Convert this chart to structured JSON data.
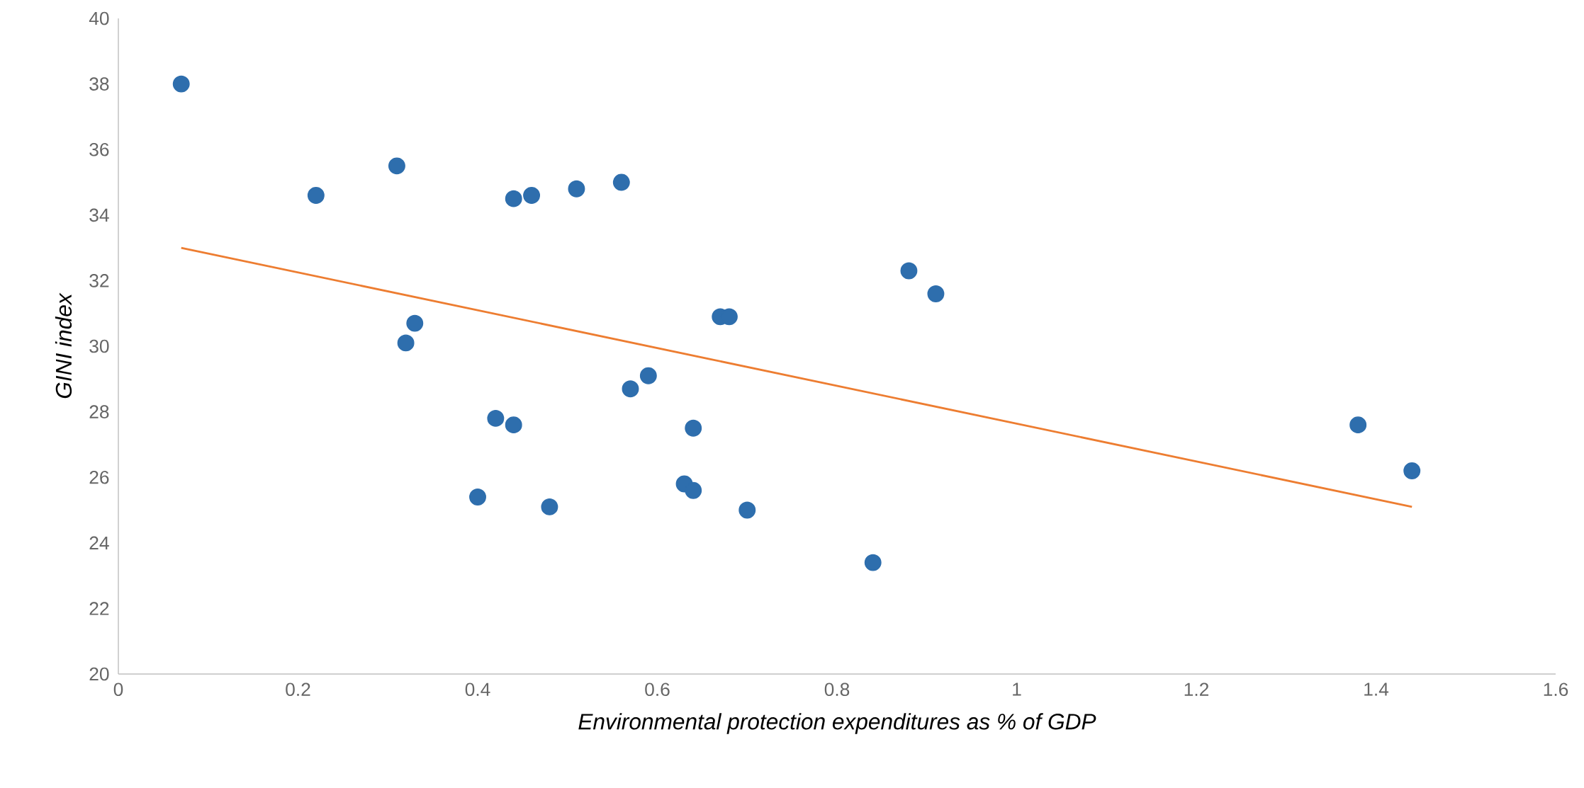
{
  "chart_data": {
    "type": "scatter",
    "xlabel": "Environmental protection expenditures as % of GDP",
    "ylabel": "GINI index",
    "xlim": [
      0,
      1.6
    ],
    "ylim": [
      20,
      40
    ],
    "xticks": [
      0,
      0.2,
      0.4,
      0.6,
      0.8,
      1,
      1.2,
      1.4,
      1.6
    ],
    "yticks": [
      20,
      22,
      24,
      26,
      28,
      30,
      32,
      34,
      36,
      38,
      40
    ],
    "grid": false,
    "series": [
      {
        "marker": "circle",
        "color": "#2e6ead",
        "x": [
          0.07,
          0.22,
          0.31,
          0.32,
          0.33,
          0.4,
          0.42,
          0.44,
          0.44,
          0.46,
          0.48,
          0.51,
          0.56,
          0.57,
          0.59,
          0.63,
          0.64,
          0.64,
          0.67,
          0.68,
          0.7,
          0.84,
          0.88,
          0.91,
          1.38,
          1.44
        ],
        "values": [
          38.0,
          34.6,
          35.5,
          30.1,
          30.7,
          25.4,
          27.8,
          27.6,
          34.5,
          34.6,
          25.1,
          34.8,
          35.0,
          28.7,
          29.1,
          25.8,
          27.5,
          25.6,
          30.9,
          30.9,
          25.0,
          23.4,
          32.3,
          31.6,
          27.6,
          26.2
        ]
      },
      {
        "type": "line",
        "color": "#ed7d31",
        "x": [
          0.07,
          1.44
        ],
        "values": [
          33.0,
          25.1
        ]
      }
    ]
  }
}
